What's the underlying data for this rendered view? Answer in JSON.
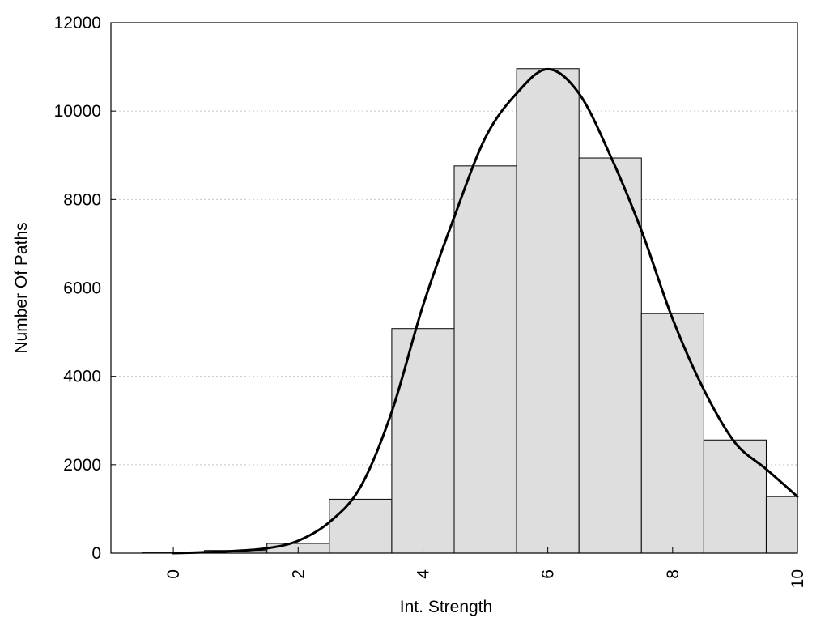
{
  "chart_data": {
    "type": "bar",
    "title": "",
    "xlabel": "Int. Strength",
    "ylabel": "Number Of Paths",
    "xlim": [
      -1,
      10
    ],
    "ylim": [
      0,
      12000
    ],
    "x_ticks": [
      0,
      2,
      4,
      6,
      8,
      10
    ],
    "y_ticks": [
      0,
      2000,
      4000,
      6000,
      8000,
      10000,
      12000
    ],
    "grid": "horizontal-dotted",
    "bar_color": "#dedede",
    "line_color": "#000000",
    "bins": [
      {
        "x": 0,
        "value": 20
      },
      {
        "x": 1,
        "value": 60
      },
      {
        "x": 2,
        "value": 220
      },
      {
        "x": 3,
        "value": 1220
      },
      {
        "x": 4,
        "value": 5080
      },
      {
        "x": 5,
        "value": 8760
      },
      {
        "x": 6,
        "value": 10960
      },
      {
        "x": 7,
        "value": 8940
      },
      {
        "x": 8,
        "value": 5420
      },
      {
        "x": 9,
        "value": 2560
      },
      {
        "x": 10,
        "value": 1280
      }
    ],
    "density_curve": {
      "x": [
        0,
        0.5,
        1,
        1.5,
        2,
        2.5,
        3,
        3.5,
        4,
        4.5,
        5,
        5.5,
        6,
        6.5,
        7,
        7.5,
        8,
        8.5,
        9,
        9.5,
        10
      ],
      "y": [
        0,
        20,
        50,
        110,
        280,
        700,
        1500,
        3200,
        5600,
        7600,
        9400,
        10400,
        10950,
        10400,
        9000,
        7300,
        5300,
        3700,
        2500,
        1900,
        1280
      ]
    }
  }
}
